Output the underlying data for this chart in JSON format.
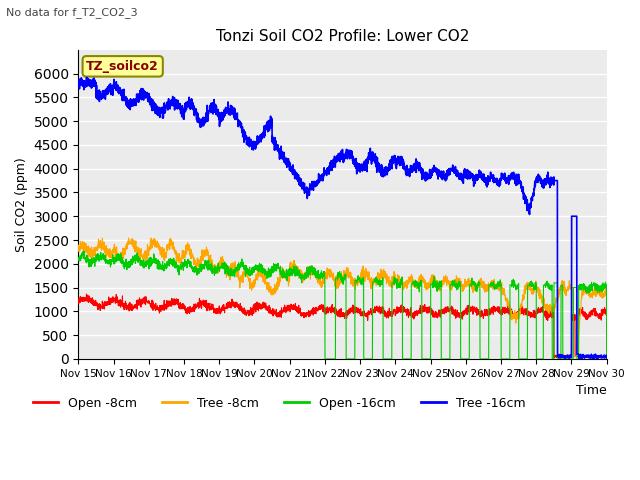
{
  "title": "Tonzi Soil CO2 Profile: Lower CO2",
  "subtitle": "No data for f_T2_CO2_3",
  "ylabel": "Soil CO2 (ppm)",
  "xlabel": "Time",
  "legend_entries": [
    "Open -8cm",
    "Tree -8cm",
    "Open -16cm",
    "Tree -16cm"
  ],
  "legend_colors": [
    "#ff0000",
    "#ffa500",
    "#00cc00",
    "#0000ff"
  ],
  "inset_label": "TZ_soilco2",
  "ylim": [
    0,
    6500
  ],
  "yticks": [
    0,
    500,
    1000,
    1500,
    2000,
    2500,
    3000,
    3500,
    4000,
    4500,
    5000,
    5500,
    6000
  ],
  "background_color": "#ffffff",
  "plot_bg_color": "#ebebeb",
  "grid_color": "#ffffff"
}
